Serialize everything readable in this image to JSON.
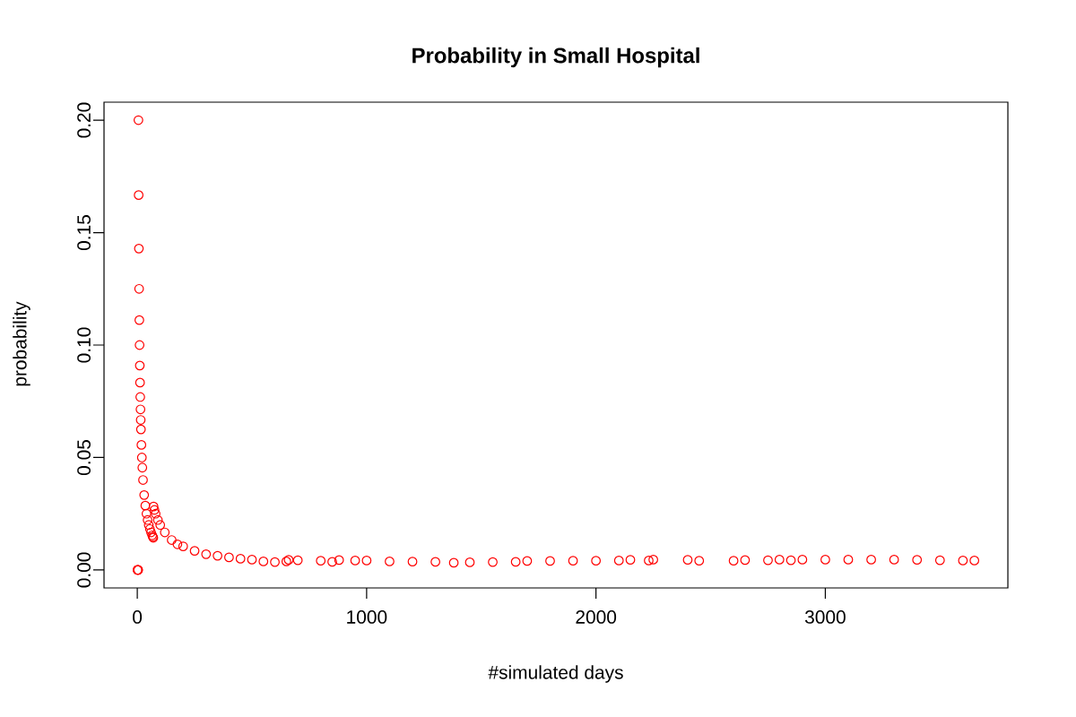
{
  "chart_data": {
    "type": "scatter",
    "title": "Probability in Small Hospital",
    "xlabel": "#simulated days",
    "ylabel": "probability",
    "x": [
      1,
      2,
      3,
      4,
      5,
      6,
      7,
      8,
      9,
      10,
      11,
      12,
      13,
      14,
      15,
      16,
      18,
      20,
      22,
      25,
      30,
      35,
      40,
      45,
      50,
      55,
      60,
      65,
      68,
      70,
      71,
      75,
      80,
      90,
      100,
      120,
      150,
      175,
      200,
      250,
      300,
      350,
      400,
      450,
      500,
      550,
      600,
      650,
      660,
      700,
      800,
      850,
      880,
      950,
      1000,
      1100,
      1200,
      1300,
      1380,
      1450,
      1550,
      1650,
      1700,
      1800,
      1900,
      2000,
      2100,
      2150,
      2230,
      2250,
      2400,
      2450,
      2600,
      2650,
      2750,
      2800,
      2850,
      2900,
      3000,
      3100,
      3200,
      3300,
      3400,
      3500,
      3600,
      3650
    ],
    "series": [
      {
        "color": "#ff0000",
        "values": [
          0,
          0,
          0,
          0,
          0.2,
          0.1667,
          0.1429,
          0.125,
          0.1111,
          0.1,
          0.0909,
          0.0833,
          0.0769,
          0.0714,
          0.0667,
          0.0625,
          0.0556,
          0.05,
          0.0455,
          0.04,
          0.0333,
          0.0286,
          0.025,
          0.0222,
          0.02,
          0.0182,
          0.0167,
          0.0154,
          0.0147,
          0.0143,
          0.0282,
          0.0267,
          0.025,
          0.0222,
          0.02,
          0.0167,
          0.0133,
          0.0114,
          0.0105,
          0.0085,
          0.007,
          0.0063,
          0.0056,
          0.005,
          0.0046,
          0.0038,
          0.0035,
          0.0038,
          0.0045,
          0.0043,
          0.0041,
          0.0036,
          0.0044,
          0.0042,
          0.0042,
          0.0038,
          0.0037,
          0.0036,
          0.0032,
          0.0034,
          0.0035,
          0.0036,
          0.004,
          0.004,
          0.0041,
          0.0041,
          0.0042,
          0.0045,
          0.0042,
          0.0046,
          0.0045,
          0.0041,
          0.0041,
          0.0044,
          0.0043,
          0.0046,
          0.0043,
          0.0046,
          0.0046,
          0.0046,
          0.0046,
          0.0046,
          0.0045,
          0.0043,
          0.0042,
          0.0042
        ]
      }
    ],
    "marker": "circle",
    "grid": false,
    "xlim": [
      -145,
      3796
    ],
    "ylim": [
      -0.008,
      0.208
    ],
    "xticks": [
      0,
      1000,
      2000,
      3000
    ],
    "yticks": [
      {
        "value": 0,
        "label": "0.00"
      },
      {
        "value": 0.05,
        "label": "0.05"
      },
      {
        "value": 0.1,
        "label": "0.10"
      },
      {
        "value": 0.15,
        "label": "0.15"
      },
      {
        "value": 0.2,
        "label": "0.20"
      }
    ]
  }
}
